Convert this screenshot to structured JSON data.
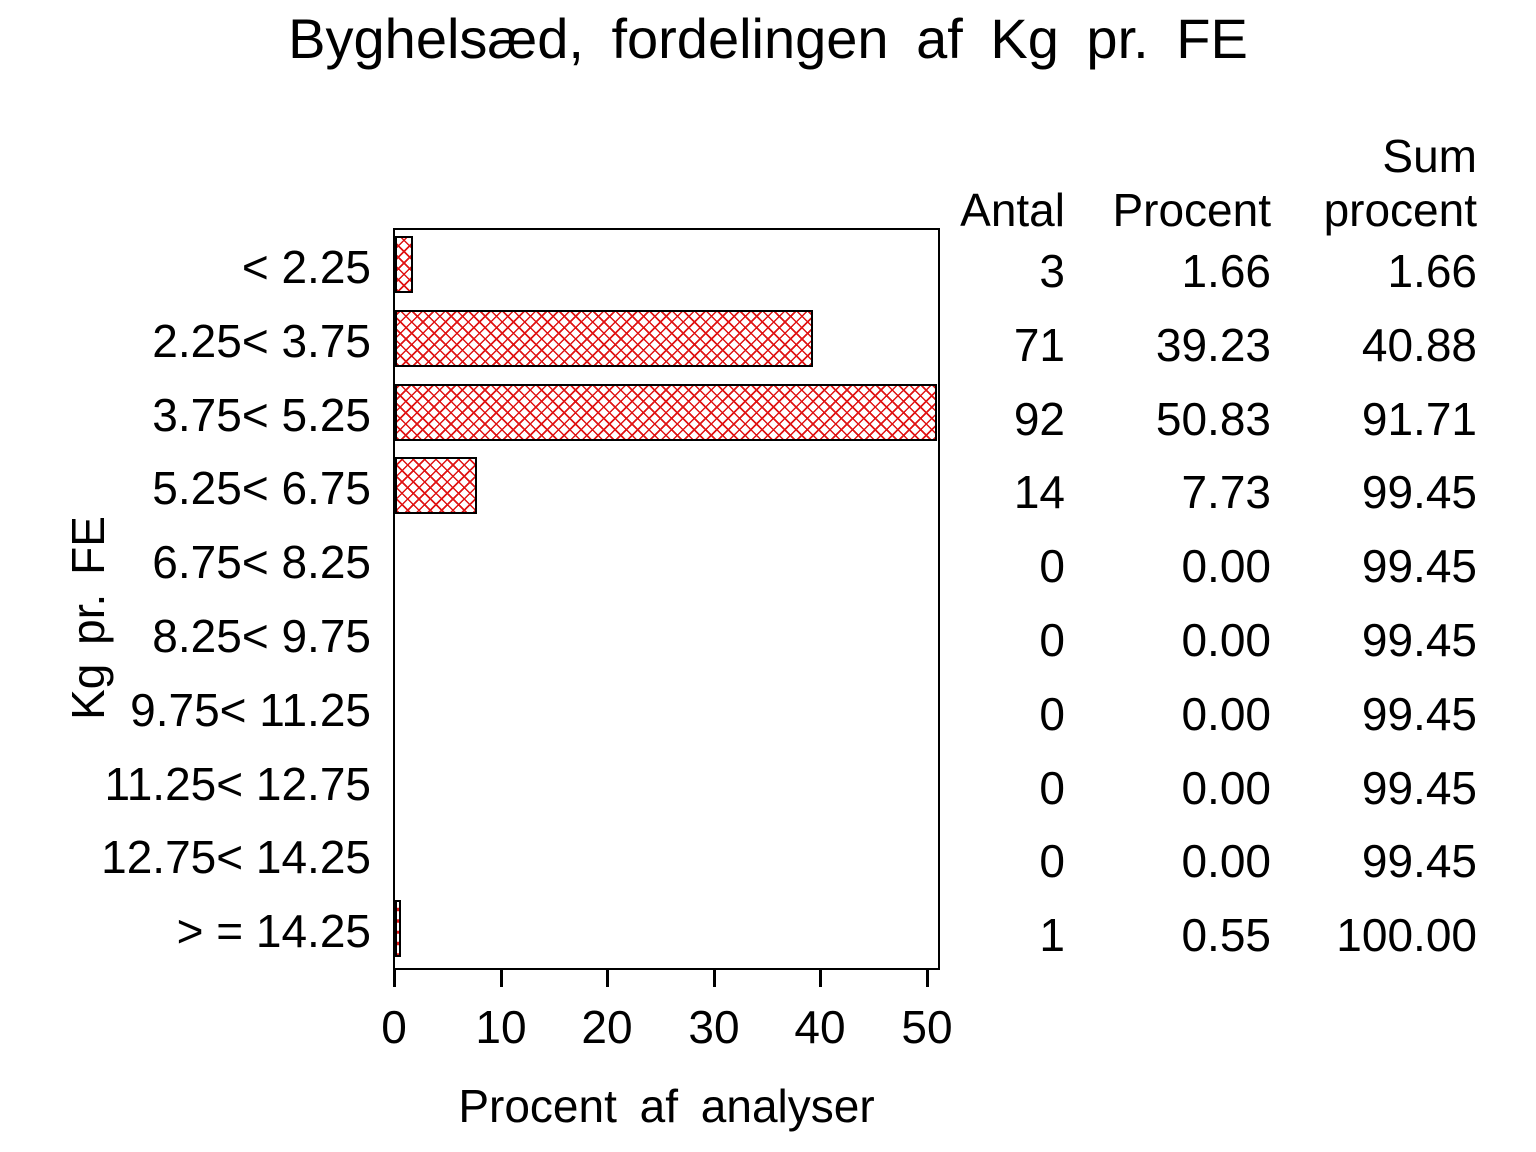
{
  "title": "Byghelsæd, fordelingen af Kg pr. FE",
  "axes": {
    "x_label": "Procent af analyser",
    "y_label": "Kg pr. FE",
    "x_ticks": [
      "0",
      "10",
      "20",
      "30",
      "40",
      "50"
    ]
  },
  "table": {
    "headers": {
      "antal": "Antal",
      "procent": "Procent",
      "sum_line1": "Sum",
      "sum_line2": "procent"
    }
  },
  "colors": {
    "hatch": "#e01414",
    "bar_border": "#000000",
    "frame": "#000000"
  },
  "chart_data": {
    "type": "bar",
    "orientation": "horizontal",
    "title": "Byghelsæd, fordelingen af Kg pr. FE",
    "xlabel": "Procent af analyser",
    "ylabel": "Kg pr. FE",
    "xlim": [
      0,
      50
    ],
    "x_tick_step": 10,
    "grid": false,
    "legend": "none",
    "bar_style": "red diagonal crosshatch fill with black outline, zero-value rows draw no bar",
    "categories": [
      "< 2.25",
      "2.25< 3.75",
      "3.75< 5.25",
      "5.25< 6.75",
      "6.75< 8.25",
      "8.25< 9.75",
      "9.75< 11.25",
      "11.25< 12.75",
      "12.75< 14.25",
      "> = 14.25"
    ],
    "series": [
      {
        "name": "Procent",
        "values": [
          1.66,
          39.23,
          50.83,
          7.73,
          0,
          0,
          0,
          0,
          0,
          0.55
        ]
      },
      {
        "name": "Antal",
        "values": [
          3,
          71,
          92,
          14,
          0,
          0,
          0,
          0,
          0,
          1
        ]
      },
      {
        "name": "Sum procent",
        "values": [
          1.66,
          40.88,
          91.71,
          99.45,
          99.45,
          99.45,
          99.45,
          99.45,
          99.45,
          100.0
        ]
      }
    ],
    "rows": [
      {
        "category": "< 2.25",
        "antal": "3",
        "procent": "1.66",
        "sum": "1.66"
      },
      {
        "category": "2.25< 3.75",
        "antal": "71",
        "procent": "39.23",
        "sum": "40.88"
      },
      {
        "category": "3.75< 5.25",
        "antal": "92",
        "procent": "50.83",
        "sum": "91.71"
      },
      {
        "category": "5.25< 6.75",
        "antal": "14",
        "procent": "7.73",
        "sum": "99.45"
      },
      {
        "category": "6.75< 8.25",
        "antal": "0",
        "procent": "0.00",
        "sum": "99.45"
      },
      {
        "category": "8.25< 9.75",
        "antal": "0",
        "procent": "0.00",
        "sum": "99.45"
      },
      {
        "category": "9.75< 11.25",
        "antal": "0",
        "procent": "0.00",
        "sum": "99.45"
      },
      {
        "category": "11.25< 12.75",
        "antal": "0",
        "procent": "0.00",
        "sum": "99.45"
      },
      {
        "category": "12.75< 14.25",
        "antal": "0",
        "procent": "0.00",
        "sum": "99.45"
      },
      {
        "category": "> = 14.25",
        "antal": "1",
        "procent": "0.55",
        "sum": "100.00"
      }
    ]
  }
}
